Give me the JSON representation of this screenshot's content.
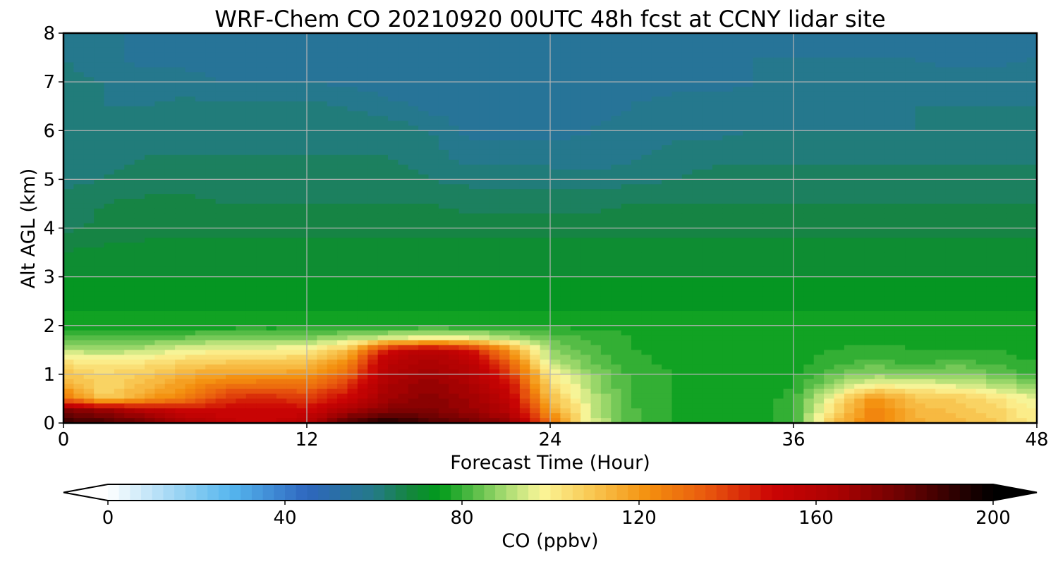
{
  "chart_data": {
    "type": "heatmap",
    "title": "WRF-Chem CO  20210920 00UTC 48h fcst at CCNY lidar site",
    "xlabel": "Forecast Time (Hour)",
    "ylabel": "Alt AGL (km)",
    "xlim": [
      0,
      48
    ],
    "ylim": [
      0,
      8
    ],
    "x_ticks": [
      0,
      12,
      24,
      36,
      48
    ],
    "y_ticks": [
      0,
      1,
      2,
      3,
      4,
      5,
      6,
      7,
      8
    ],
    "grid": true,
    "x": [
      0,
      2,
      4,
      6,
      8,
      10,
      12,
      14,
      16,
      18,
      20,
      22,
      24,
      26,
      28,
      30,
      32,
      34,
      36,
      38,
      40,
      42,
      44,
      46,
      48
    ],
    "y": [
      0,
      0.25,
      0.5,
      0.75,
      1,
      1.25,
      1.5,
      1.75,
      2,
      2.5,
      3,
      3.5,
      4,
      4.5,
      5,
      5.5,
      6,
      6.5,
      7,
      7.5,
      8
    ],
    "z": [
      [
        190,
        186,
        178,
        165,
        155,
        150,
        160,
        185,
        195,
        185,
        178,
        170,
        130,
        95,
        82,
        78,
        76,
        76,
        80,
        110,
        128,
        115,
        112,
        108,
        100
      ],
      [
        175,
        170,
        160,
        150,
        150,
        152,
        150,
        165,
        175,
        175,
        170,
        160,
        120,
        94,
        82,
        78,
        76,
        76,
        80,
        105,
        126,
        113,
        110,
        106,
        98
      ],
      [
        130,
        108,
        118,
        128,
        142,
        145,
        140,
        150,
        168,
        172,
        168,
        155,
        112,
        92,
        80,
        78,
        76,
        76,
        79,
        100,
        122,
        110,
        108,
        103,
        95
      ],
      [
        118,
        104,
        112,
        120,
        130,
        132,
        130,
        142,
        165,
        170,
        165,
        150,
        106,
        90,
        80,
        78,
        76,
        76,
        78,
        90,
        100,
        98,
        96,
        92,
        87
      ],
      [
        110,
        105,
        108,
        115,
        118,
        118,
        120,
        132,
        162,
        168,
        162,
        142,
        100,
        88,
        80,
        78,
        76,
        76,
        77,
        84,
        88,
        86,
        88,
        84,
        80
      ],
      [
        103,
        100,
        102,
        106,
        108,
        108,
        110,
        124,
        158,
        164,
        158,
        132,
        92,
        84,
        79,
        77,
        76,
        76,
        76,
        80,
        82,
        80,
        82,
        80,
        78
      ],
      [
        92,
        90,
        92,
        96,
        98,
        98,
        100,
        110,
        150,
        158,
        150,
        120,
        88,
        82,
        78,
        77,
        76,
        76,
        76,
        78,
        79,
        78,
        78,
        78,
        76
      ],
      [
        82,
        82,
        82,
        84,
        86,
        86,
        86,
        90,
        94,
        98,
        96,
        90,
        84,
        80,
        78,
        77,
        76,
        76,
        76,
        77,
        77,
        77,
        77,
        77,
        76
      ],
      [
        76,
        76,
        76,
        76,
        76,
        76,
        76,
        76,
        77,
        77,
        77,
        77,
        77,
        77,
        77,
        77,
        77,
        77,
        77,
        77,
        77,
        77,
        77,
        77,
        77
      ],
      [
        74,
        74,
        74,
        74,
        74,
        74,
        74,
        74,
        74,
        74,
        74,
        74,
        74,
        74,
        74,
        74,
        74,
        74,
        74,
        74,
        74,
        74,
        74,
        74,
        74
      ],
      [
        72,
        72,
        72,
        72,
        72,
        72,
        72,
        72,
        72,
        72,
        72,
        72,
        72,
        72,
        72,
        72,
        72,
        72,
        72,
        72,
        72,
        72,
        72,
        72,
        72
      ],
      [
        69,
        70,
        70,
        70,
        70,
        70,
        70,
        70,
        70,
        70,
        70,
        70,
        70,
        70,
        70,
        70,
        70,
        70,
        70,
        70,
        70,
        70,
        70,
        70,
        70
      ],
      [
        65,
        67,
        68,
        68,
        68,
        68,
        68,
        68,
        68,
        68,
        68,
        68,
        68,
        68,
        68,
        68,
        68,
        68,
        68,
        68,
        68,
        68,
        68,
        68,
        68
      ],
      [
        64,
        66,
        67,
        67,
        66,
        66,
        66,
        66,
        66,
        66,
        65,
        65,
        65,
        65,
        66,
        66,
        66,
        66,
        66,
        66,
        66,
        66,
        66,
        66,
        66
      ],
      [
        62,
        63,
        64,
        64,
        64,
        64,
        64,
        64,
        64,
        63,
        62,
        62,
        62,
        61,
        62,
        63,
        64,
        64,
        64,
        64,
        64,
        64,
        64,
        64,
        64
      ],
      [
        60,
        62,
        63,
        63,
        63,
        63,
        63,
        63,
        63,
        62,
        58,
        58,
        58,
        58,
        59,
        61,
        62,
        62,
        62,
        62,
        62,
        62,
        62,
        62,
        62
      ],
      [
        60,
        61,
        62,
        62,
        62,
        62,
        62,
        62,
        62,
        60,
        56,
        56,
        56,
        57,
        58,
        59,
        59,
        60,
        60,
        60,
        60,
        60,
        60,
        60,
        60
      ],
      [
        60,
        60,
        60,
        61,
        61,
        61,
        61,
        60,
        58,
        56,
        55,
        55,
        55,
        56,
        57,
        58,
        58,
        58,
        59,
        59,
        59,
        60,
        60,
        60,
        60
      ],
      [
        61,
        60,
        58,
        58,
        57,
        57,
        57,
        56,
        55,
        55,
        55,
        55,
        55,
        55,
        56,
        56,
        56,
        57,
        58,
        58,
        58,
        59,
        59,
        59,
        59
      ],
      [
        60,
        58,
        56,
        56,
        55,
        55,
        55,
        55,
        55,
        55,
        55,
        55,
        55,
        55,
        55,
        55,
        56,
        57,
        57,
        57,
        57,
        57,
        55,
        56,
        57
      ],
      [
        60,
        58,
        56,
        55,
        55,
        55,
        55,
        55,
        55,
        55,
        55,
        55,
        55,
        55,
        55,
        55,
        55,
        56,
        56,
        56,
        56,
        56,
        55,
        56,
        57
      ]
    ],
    "colorbar": {
      "label": "CO  (ppbv)",
      "min": 0,
      "max": 200,
      "ticks": [
        0,
        40,
        80,
        120,
        160,
        200
      ],
      "extend": "both",
      "stops": [
        {
          "value": 0,
          "color": "#ffffff"
        },
        {
          "value": 15,
          "color": "#9fd6f4"
        },
        {
          "value": 28,
          "color": "#55b6ee"
        },
        {
          "value": 45,
          "color": "#2e66be"
        },
        {
          "value": 60,
          "color": "#247a88"
        },
        {
          "value": 68,
          "color": "#15853f"
        },
        {
          "value": 75,
          "color": "#009b1a"
        },
        {
          "value": 90,
          "color": "#a9dc72"
        },
        {
          "value": 98,
          "color": "#fbf699"
        },
        {
          "value": 108,
          "color": "#f9cd59"
        },
        {
          "value": 122,
          "color": "#f4900e"
        },
        {
          "value": 135,
          "color": "#e95a0e"
        },
        {
          "value": 150,
          "color": "#cb0404"
        },
        {
          "value": 165,
          "color": "#aa0202"
        },
        {
          "value": 180,
          "color": "#6a0202"
        },
        {
          "value": 200,
          "color": "#000000"
        }
      ]
    }
  }
}
